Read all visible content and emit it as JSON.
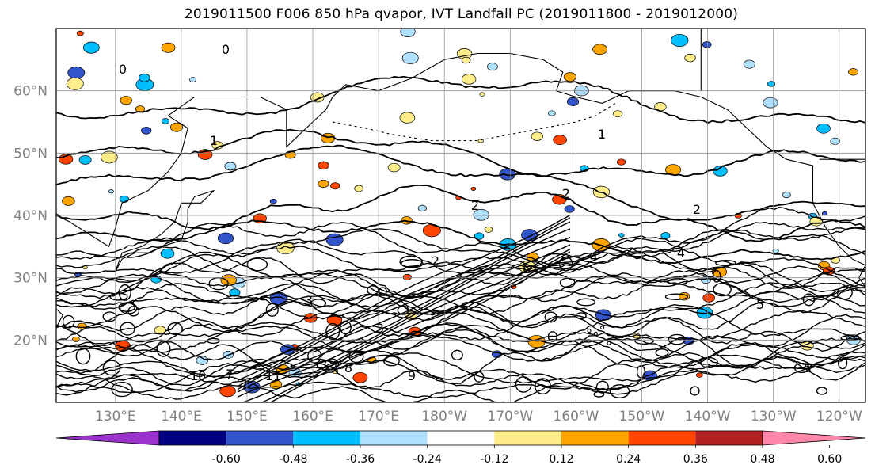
{
  "figure": {
    "title": "2019011500 F006 850 hPa qvapor, IVT Landfall PC (2019011800 - 2019012000)"
  },
  "map": {
    "lat_labels": [
      "60°N",
      "50°N",
      "40°N",
      "30°N",
      "20°N"
    ],
    "lon_labels": [
      "130°E",
      "140°E",
      "150°E",
      "160°E",
      "170°E",
      "180°W",
      "170°W",
      "160°W",
      "150°W",
      "140°W",
      "130°W",
      "120°W"
    ],
    "lat_range": [
      10,
      70
    ],
    "lon_range": [
      121,
      244
    ],
    "grid_lats": [
      20,
      30,
      40,
      50,
      60
    ],
    "grid_lons": [
      130,
      140,
      150,
      160,
      170,
      180,
      190,
      200,
      210,
      220,
      230,
      240
    ],
    "contour_labels": [
      "0",
      "0",
      "1",
      "1",
      "2",
      "2",
      "2",
      "2",
      "3",
      "3",
      "4",
      "4",
      "5",
      "5",
      "6",
      "7",
      "8",
      "9",
      "10",
      "11"
    ]
  },
  "colorbar": {
    "tick_labels": [
      "-0.60",
      "-0.48",
      "-0.36",
      "-0.24",
      "-0.12",
      "0.12",
      "0.24",
      "0.36",
      "0.48",
      "0.60"
    ],
    "colors": [
      "#9933cc",
      "#000080",
      "#3355cc",
      "#00bfff",
      "#b0e0ff",
      "#ffffff",
      "#ffec8b",
      "#ffa500",
      "#ff4500",
      "#b22222",
      "#ff88aa"
    ],
    "extend": "both"
  }
}
